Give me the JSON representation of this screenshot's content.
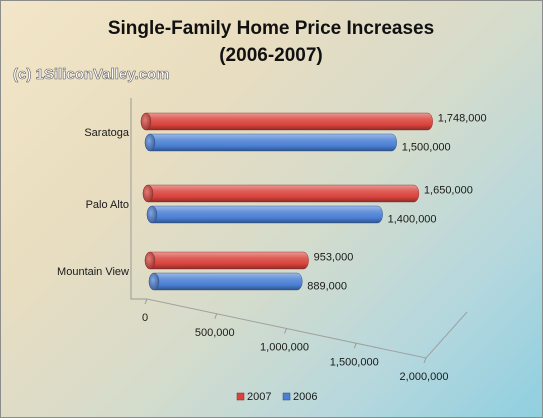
{
  "chart_data": {
    "type": "bar",
    "orientation": "horizontal",
    "style": "3d-cylinder",
    "title": [
      "Single-Family Home Price Increases",
      "(2006-2007)"
    ],
    "watermark": "(c) 1SiliconValley.com",
    "categories": [
      "Saratoga",
      "Palo Alto",
      "Mountain View"
    ],
    "series": [
      {
        "name": "2007",
        "color": "#d9433c",
        "values": [
          1748000,
          1650000,
          953000
        ],
        "labels": [
          "1,748,000",
          "1,650,000",
          "953,000"
        ]
      },
      {
        "name": "2006",
        "color": "#4a7fd4",
        "values": [
          1500000,
          1400000,
          889000
        ],
        "labels": [
          "1,500,000",
          "1,400,000",
          "889,000"
        ]
      }
    ],
    "xlim": [
      0,
      2000000
    ],
    "ticks": [
      {
        "value": 0,
        "label": "0"
      },
      {
        "value": 500000,
        "label": "500,000"
      },
      {
        "value": 1000000,
        "label": "1,000,000"
      },
      {
        "value": 1500000,
        "label": "1,500,000"
      },
      {
        "value": 2000000,
        "label": "2,000,000"
      }
    ],
    "xlabel": "",
    "ylabel": "",
    "legend": "bottom",
    "grid": false
  }
}
